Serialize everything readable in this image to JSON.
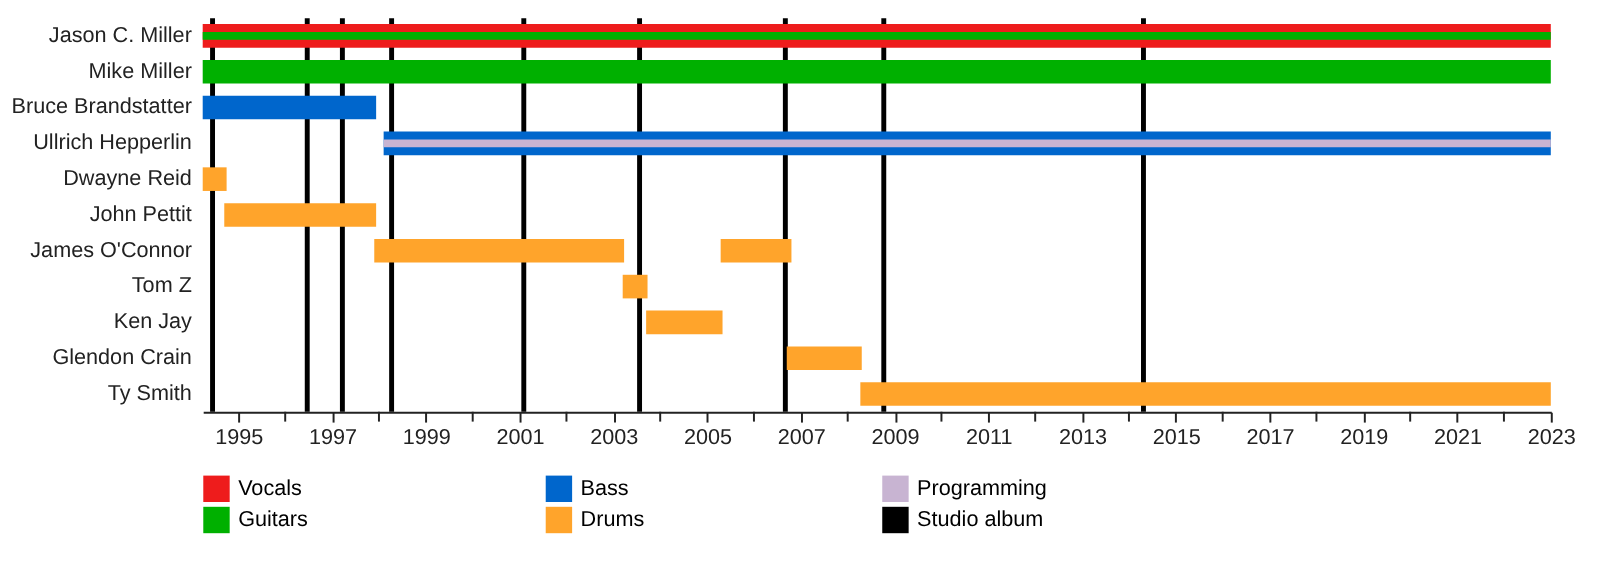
{
  "chart_data": {
    "type": "bar",
    "orientation": "horizontal",
    "categories": [
      "Jason C. Miller",
      "Mike Miller",
      "Bruce Brandstatter",
      "Ullrich Hepperlin",
      "Dwayne Reid",
      "John Pettit",
      "James O'Connor",
      "Tom Z",
      "Ken Jay",
      "Glendon Crain",
      "Ty Smith"
    ],
    "series": [
      {
        "name": "Vocals",
        "color": "#ee1c1c",
        "base": [
          1994.24,
          null,
          null,
          null,
          null,
          null,
          null,
          null,
          null,
          null,
          null
        ],
        "values": [
          28.76,
          null,
          null,
          null,
          null,
          null,
          null,
          null,
          null,
          null,
          null
        ]
      },
      {
        "name": "Guitars",
        "color": "#00b000",
        "base": [
          1994.24,
          1994.24,
          null,
          null,
          null,
          null,
          null,
          null,
          null,
          null,
          null
        ],
        "values": [
          28.76,
          28.76,
          null,
          null,
          null,
          null,
          null,
          null,
          null,
          null,
          null
        ]
      },
      {
        "name": "Bass",
        "color": "#0066cc",
        "base": [
          null,
          null,
          1994.24,
          1998.1,
          null,
          null,
          null,
          null,
          null,
          null,
          null
        ],
        "values": [
          null,
          null,
          3.7,
          24.9,
          null,
          null,
          null,
          null,
          null,
          null,
          null
        ]
      },
      {
        "name": "Drums",
        "color": "#ffa42b",
        "base": [
          null,
          null,
          null,
          null,
          1994.24,
          1994.7,
          1997.9,
          2003.2,
          2003.7,
          2006.7,
          2008.27
        ],
        "values": [
          null,
          null,
          null,
          null,
          0.51,
          3.24,
          5.33,
          0.53,
          1.63,
          1.6,
          14.73
        ]
      },
      {
        "color": "#ffa42b",
        "base": [
          null,
          null,
          null,
          null,
          null,
          null,
          2005.29,
          null,
          null,
          null,
          null
        ],
        "values": [
          null,
          null,
          null,
          null,
          null,
          null,
          1.51,
          null,
          null,
          null,
          null
        ]
      },
      {
        "name": "Programming",
        "color": "#c8b4d2",
        "base": [
          null,
          null,
          null,
          1998.1,
          null,
          null,
          null,
          null,
          null,
          null,
          null
        ],
        "values": [
          null,
          null,
          null,
          24.9,
          null,
          null,
          null,
          null,
          null,
          null,
          null
        ]
      }
    ],
    "ref_lines": [
      {
        "axis": "x",
        "value": 1994.45,
        "color": "#000000",
        "label": "Studio album"
      },
      {
        "axis": "x",
        "value": 1996.47,
        "color": "#000000"
      },
      {
        "axis": "x",
        "value": 1997.22,
        "color": "#000000"
      },
      {
        "axis": "x",
        "value": 1998.27,
        "color": "#000000"
      },
      {
        "axis": "x",
        "value": 2001.09,
        "color": "#000000"
      },
      {
        "axis": "x",
        "value": 2003.56,
        "color": "#000000"
      },
      {
        "axis": "x",
        "value": 2006.67,
        "color": "#000000"
      },
      {
        "axis": "x",
        "value": 2008.77,
        "color": "#000000"
      },
      {
        "axis": "x",
        "value": 2014.31,
        "color": "#000000"
      }
    ],
    "xlim": [
      1994.24,
      2023
    ],
    "xticks": [
      1995,
      {
        "value": 1996,
        "label": null
      },
      1997,
      {
        "value": 1998,
        "label": null
      },
      1999,
      {
        "value": 2000,
        "label": null
      },
      2001,
      {
        "value": 2002,
        "label": null
      },
      2003,
      {
        "value": 2004,
        "label": null
      },
      2005,
      {
        "value": 2006,
        "label": null
      },
      2007,
      {
        "value": 2008,
        "label": null
      },
      2009,
      {
        "value": 2010,
        "label": null
      },
      2011,
      {
        "value": 2012,
        "label": null
      },
      2013,
      {
        "value": 2014,
        "label": null
      },
      2015,
      {
        "value": 2016,
        "label": null
      },
      2017,
      {
        "value": 2018,
        "label": null
      },
      2019,
      {
        "value": 2020,
        "label": null
      },
      2021,
      {
        "value": 2022,
        "label": null
      },
      2023
    ],
    "grid": false,
    "legend": "bottom"
  }
}
